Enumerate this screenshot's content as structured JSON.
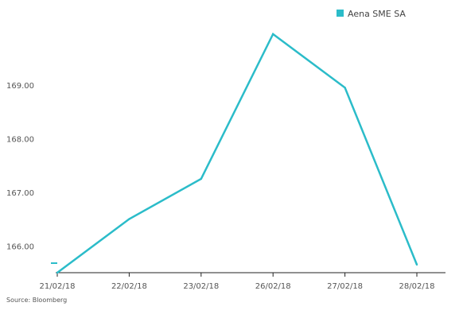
{
  "chart_data": {
    "type": "line",
    "title": "",
    "xlabel": "",
    "ylabel": "",
    "categories": [
      "21/02/18",
      "22/02/18",
      "23/02/18",
      "26/02/18",
      "27/02/18",
      "28/02/18"
    ],
    "series": [
      {
        "name": "Aena SME SA",
        "color": "#2bbcc9",
        "values": [
          165.5,
          166.5,
          167.25,
          169.95,
          168.95,
          165.65
        ]
      }
    ],
    "y_ticks": [
      "166.00",
      "167.00",
      "168.00",
      "169.00"
    ],
    "y_tick_values": [
      166,
      167,
      168,
      169
    ],
    "ylim": [
      165.5,
      170.2
    ],
    "grid": false,
    "legend_position": "top-right",
    "source": "Source: Bloomberg",
    "axis_color": "#222222",
    "tick_color": "#555555"
  }
}
